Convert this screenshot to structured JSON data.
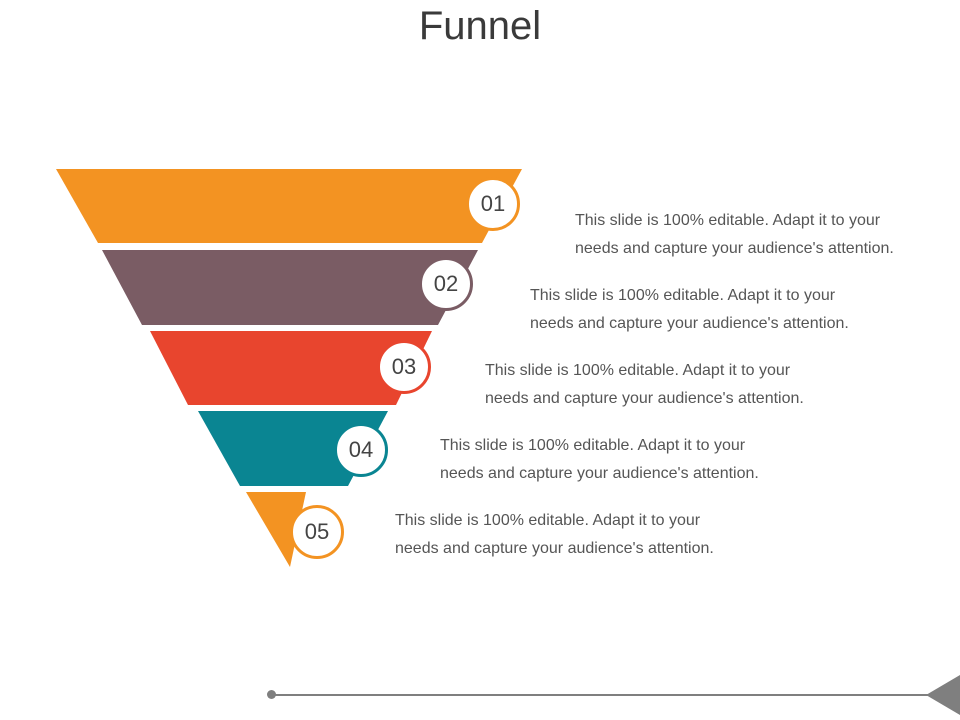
{
  "title": "Funnel",
  "stages": [
    {
      "number": "01",
      "text": "This slide is 100% editable. Adapt it to your needs and capture your audience's attention.",
      "color": "#f39322"
    },
    {
      "number": "02",
      "text": "This slide is 100% editable. Adapt it to your needs and capture your audience's attention.",
      "color": "#7a5c64"
    },
    {
      "number": "03",
      "text": "This slide is 100% editable. Adapt it to your needs and capture your audience's attention.",
      "color": "#e8452e"
    },
    {
      "number": "04",
      "text": "This slide is 100% editable. Adapt it to your needs and capture your audience's attention.",
      "color": "#0a8592"
    },
    {
      "number": "05",
      "text": "This slide is 100% editable. Adapt it to your needs and capture your audience's attention.",
      "color": "#f39322"
    }
  ]
}
